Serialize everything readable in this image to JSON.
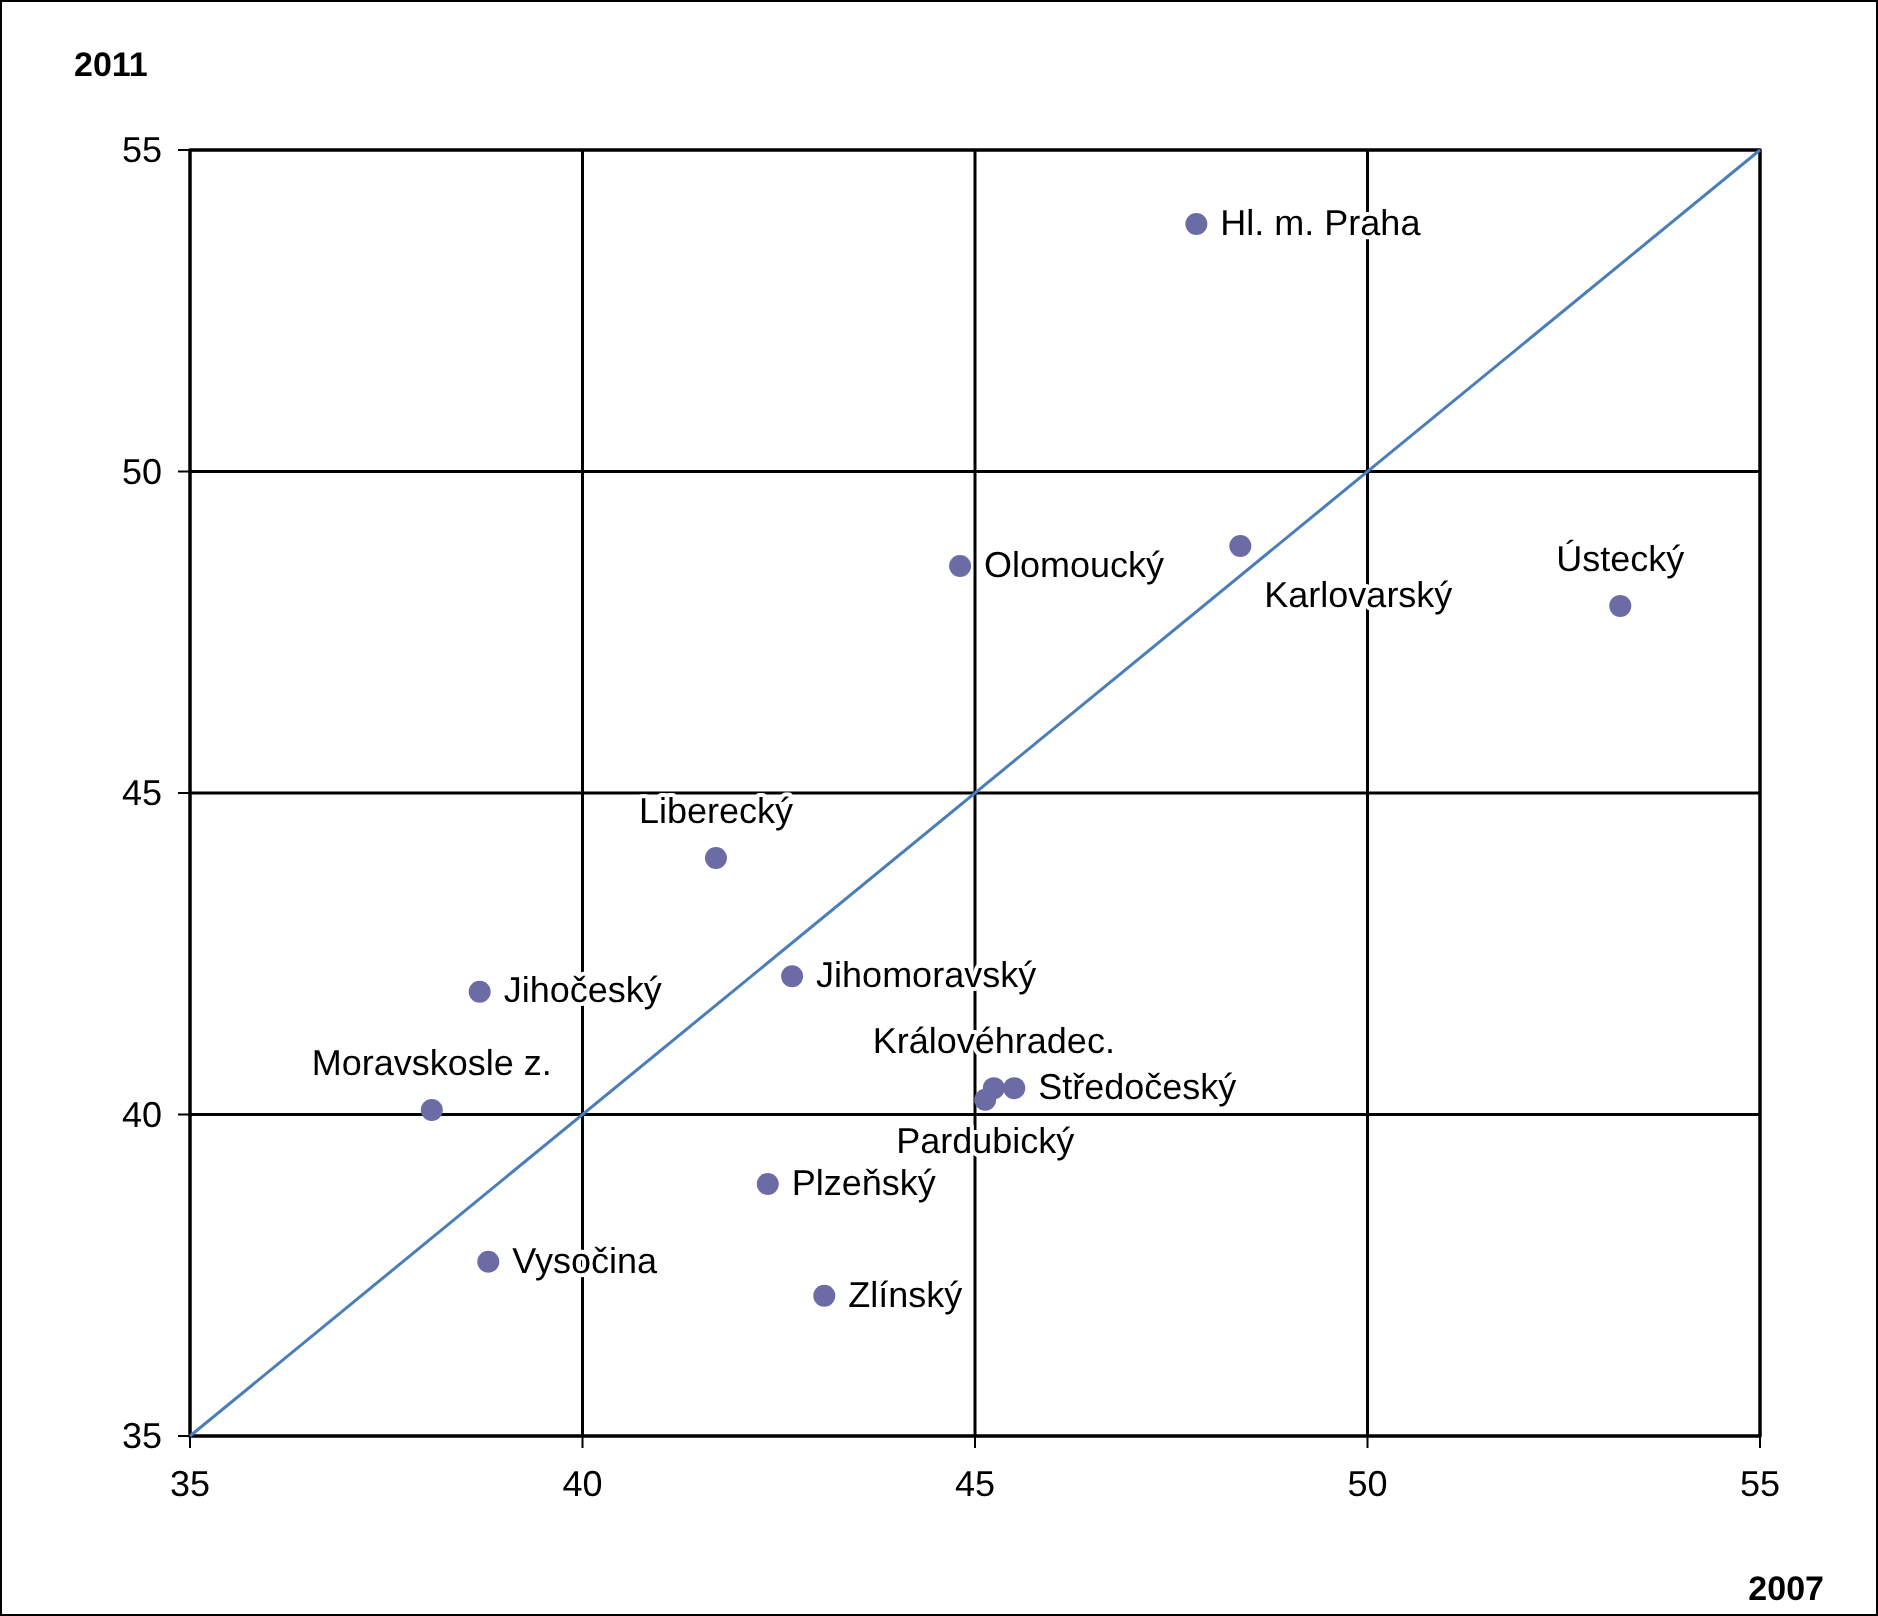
{
  "chart_data": {
    "type": "scatter",
    "xlabel": "2007",
    "ylabel": "2011",
    "xlim": [
      35,
      55
    ],
    "ylim": [
      35,
      55
    ],
    "xticks": [
      35,
      40,
      45,
      50,
      55
    ],
    "yticks": [
      35,
      40,
      45,
      50,
      55
    ],
    "grid": true,
    "series": [
      {
        "marker": "circle",
        "color": "#6b6ba6",
        "x": [
          47.82,
          44.81,
          48.38,
          53.22,
          41.7,
          38.69,
          42.67,
          45.24,
          45.5,
          45.13,
          38.08,
          42.36,
          38.8,
          43.08
        ],
        "values": [
          53.85,
          48.53,
          48.84,
          47.91,
          43.99,
          41.91,
          42.15,
          40.41,
          40.41,
          40.23,
          40.07,
          38.92,
          37.71,
          37.18
        ]
      },
      {
        "type": "line",
        "color": "#4a7ebb",
        "x": [
          35,
          55
        ],
        "values": [
          35,
          55
        ],
        "marker": "none"
      }
    ],
    "annotations": [
      {
        "text": "Hl. m. Praha",
        "x": 47.82,
        "y": 53.85
      },
      {
        "text": "Olomoucký",
        "x": 44.81,
        "y": 48.53
      },
      {
        "text": "Karlovarský",
        "x": 48.38,
        "y": 48.84
      },
      {
        "text": "Ústecký",
        "x": 53.22,
        "y": 47.91
      },
      {
        "text": "Liberecký",
        "x": 41.7,
        "y": 43.99
      },
      {
        "text": "Jihočeský",
        "x": 38.69,
        "y": 41.91
      },
      {
        "text": "Jihomoravský",
        "x": 42.67,
        "y": 42.15
      },
      {
        "text": "Královéhradec.",
        "x": 45.24,
        "y": 40.41
      },
      {
        "text": "Středočeský",
        "x": 45.5,
        "y": 40.41
      },
      {
        "text": "Pardubický",
        "x": 45.13,
        "y": 40.23
      },
      {
        "text": "Moravskosle z.",
        "x": 38.08,
        "y": 40.07
      },
      {
        "text": "Plzeňský",
        "x": 42.36,
        "y": 38.92
      },
      {
        "text": "Vysočina",
        "x": 38.8,
        "y": 37.71
      },
      {
        "text": "Zlínský",
        "x": 43.08,
        "y": 37.18
      }
    ]
  }
}
